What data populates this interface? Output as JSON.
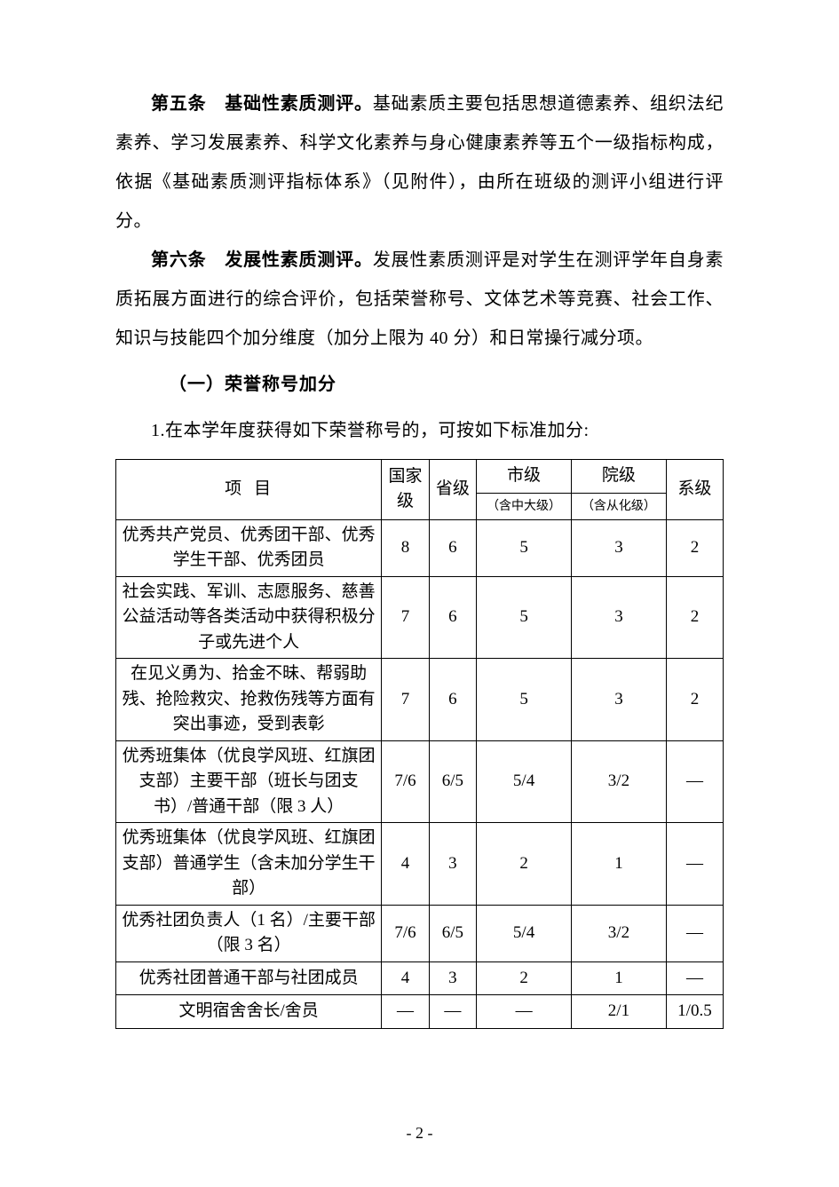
{
  "paragraphs": {
    "p1_bold": "第五条　基础性素质测评。",
    "p1_text": "基础素质主要包括思想道德素养、组织法纪素养、学习发展素养、科学文化素养与身心健康素养等五个一级指标构成，依据《基础素质测评指标体系》（见附件），由所在班级的测评小组进行评分。",
    "p2_bold": "第六条　发展性素质测评。",
    "p2_text": "发展性素质测评是对学生在测评学年自身素质拓展方面进行的综合评价，包括荣誉称号、文体艺术等竞赛、社会工作、知识与技能四个加分维度（加分上限为 40 分）和日常操行减分项。"
  },
  "section_heading": "（一）荣誉称号加分",
  "numbered_line": "1.在本学年度获得如下荣誉称号的，可按如下标准加分:",
  "table": {
    "headers": {
      "item": "项目",
      "national": "国家级",
      "provincial": "省级",
      "city_main": "市级",
      "city_sub": "（含中大级）",
      "college_main": "院级",
      "college_sub": "（含从化级）",
      "dept": "系级"
    },
    "rows": [
      {
        "item": "优秀共产党员、优秀团干部、优秀学生干部、优秀团员",
        "national": "8",
        "provincial": "6",
        "city": "5",
        "college": "3",
        "dept": "2"
      },
      {
        "item": "社会实践、军训、志愿服务、慈善公益活动等各类活动中获得积极分子或先进个人",
        "national": "7",
        "provincial": "6",
        "city": "5",
        "college": "3",
        "dept": "2"
      },
      {
        "item": "在见义勇为、拾金不昧、帮弱助残、抢险救灾、抢救伤残等方面有突出事迹，受到表彰",
        "national": "7",
        "provincial": "6",
        "city": "5",
        "college": "3",
        "dept": "2"
      },
      {
        "item": "优秀班集体（优良学风班、红旗团支部）主要干部（班长与团支书）/普通干部（限 3 人）",
        "national": "7/6",
        "provincial": "6/5",
        "city": "5/4",
        "college": "3/2",
        "dept": "—"
      },
      {
        "item": "优秀班集体（优良学风班、红旗团支部）普通学生（含未加分学生干部）",
        "national": "4",
        "provincial": "3",
        "city": "2",
        "college": "1",
        "dept": "—"
      },
      {
        "item": "优秀社团负责人（1 名）/主要干部（限 3 名）",
        "national": "7/6",
        "provincial": "6/5",
        "city": "5/4",
        "college": "3/2",
        "dept": "—"
      },
      {
        "item": "优秀社团普通干部与社团成员",
        "national": "4",
        "provincial": "3",
        "city": "2",
        "college": "1",
        "dept": "—"
      },
      {
        "item": "文明宿舍舍长/舍员",
        "national": "—",
        "provincial": "—",
        "city": "—",
        "college": "2/1",
        "dept": "1/0.5"
      }
    ]
  },
  "page_number": "- 2 -"
}
